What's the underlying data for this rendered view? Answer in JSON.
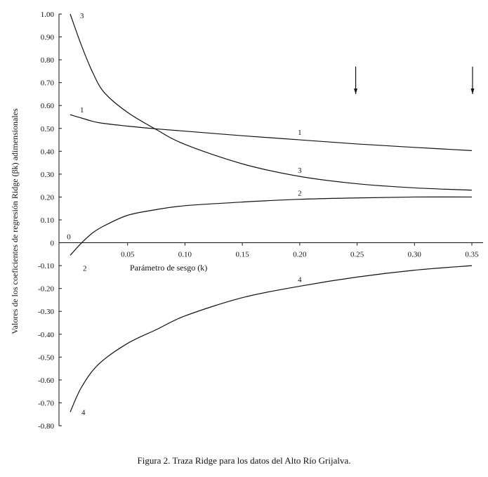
{
  "chart_data": {
    "type": "line",
    "title": "",
    "xlabel": "Parámetro de sesgo (k)",
    "ylabel": "Valores de los coeficientes de regresión Ridge (βk) adimensionales",
    "xlim": [
      0,
      0.35
    ],
    "ylim": [
      -0.8,
      1.0
    ],
    "x_ticks": [
      0.05,
      0.1,
      0.15,
      0.2,
      0.25,
      0.3,
      0.35
    ],
    "x_tick_labels": [
      "0.05",
      "0.10",
      "0.15",
      "0.20",
      "0.25",
      "0.30",
      "0.35"
    ],
    "y_ticks": [
      1.0,
      0.9,
      0.8,
      0.7,
      0.6,
      0.5,
      0.4,
      0.3,
      0.2,
      0.1,
      0,
      -0.1,
      -0.2,
      -0.3,
      -0.4,
      -0.5,
      -0.6,
      -0.7,
      -0.8
    ],
    "y_tick_labels": [
      "1.00",
      "0.90",
      "0.80",
      "0.70",
      "0.60",
      "0.50",
      "0.40",
      "0.30",
      "0.20",
      "0.10",
      "0",
      "-0.10",
      "-0.20",
      "-0.30",
      "-0.40",
      "-0.50",
      "-0.60",
      "-0.70",
      "-0.80"
    ],
    "origin_label": "0",
    "grid": false,
    "series": [
      {
        "name": "1",
        "x": [
          0,
          0.01,
          0.025,
          0.05,
          0.075,
          0.1,
          0.15,
          0.2,
          0.25,
          0.3,
          0.35
        ],
        "values": [
          0.56,
          0.545,
          0.525,
          0.51,
          0.498,
          0.488,
          0.468,
          0.45,
          0.432,
          0.417,
          0.403
        ],
        "start_label": "1",
        "mid_label": "1",
        "mid_label_x": 0.2
      },
      {
        "name": "2",
        "x": [
          0,
          0.01,
          0.02,
          0.03,
          0.05,
          0.075,
          0.1,
          0.15,
          0.2,
          0.25,
          0.3,
          0.35
        ],
        "values": [
          -0.055,
          0.0,
          0.045,
          0.075,
          0.12,
          0.145,
          0.162,
          0.178,
          0.19,
          0.196,
          0.2,
          0.2
        ],
        "start_label": "2",
        "mid_label": "2",
        "mid_label_x": 0.2
      },
      {
        "name": "3",
        "x": [
          0,
          0.01,
          0.02,
          0.03,
          0.05,
          0.075,
          0.1,
          0.15,
          0.2,
          0.25,
          0.3,
          0.35
        ],
        "values": [
          1.0,
          0.86,
          0.74,
          0.655,
          0.57,
          0.495,
          0.43,
          0.345,
          0.29,
          0.258,
          0.24,
          0.23
        ],
        "start_label": "3",
        "mid_label": "3",
        "mid_label_x": 0.2
      },
      {
        "name": "4",
        "x": [
          0,
          0.01,
          0.025,
          0.05,
          0.075,
          0.1,
          0.15,
          0.2,
          0.25,
          0.3,
          0.35
        ],
        "values": [
          -0.74,
          -0.63,
          -0.53,
          -0.44,
          -0.38,
          -0.32,
          -0.24,
          -0.19,
          -0.15,
          -0.12,
          -0.1
        ],
        "start_label": "4",
        "mid_label": "4",
        "mid_label_x": 0.2
      }
    ],
    "arrows": [
      {
        "x": 0.25,
        "y_from": 0.77,
        "y_to": 0.65
      },
      {
        "x": 0.35,
        "y_from": 0.77,
        "y_to": 0.65
      }
    ],
    "line_color": "#111111"
  },
  "caption": "Figura 2. Traza Ridge para los datos del Alto Río Grijalva."
}
